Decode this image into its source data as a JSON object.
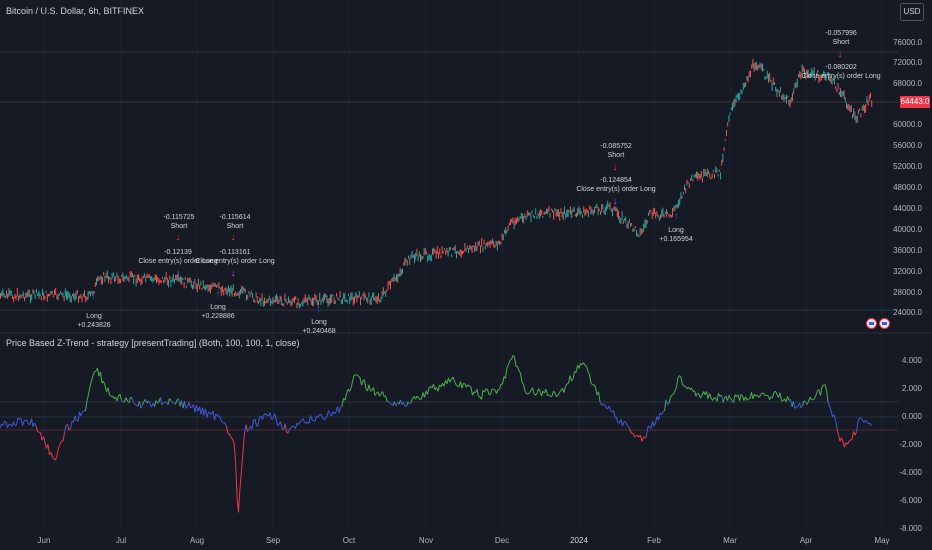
{
  "header": {
    "symbol_title": "Bitcoin / U.S. Dollar, 6h, BITFINEX",
    "currency_button": "USD"
  },
  "price_axis": {
    "labels": [
      "76000.0",
      "72000.0",
      "68000.0",
      "60000.0",
      "56000.0",
      "52000.0",
      "48000.0",
      "44000.0",
      "40000.0",
      "36000.0",
      "32000.0",
      "28000.0",
      "24000.0"
    ],
    "last_price": "64443.0",
    "last_price_color": "#f23645"
  },
  "indicator": {
    "title": "Price Based Z-Trend - strategy [presentTrading] (Both, 100, 100, 1, close)",
    "axis_labels": [
      "4.000",
      "2.000",
      "0.000",
      "-2.000",
      "-4.000",
      "-6.000",
      "-8.000"
    ],
    "colors": {
      "positive": "#4caf50",
      "neutral": "#3f5bd8",
      "negative": "#f23645"
    }
  },
  "time_axis": {
    "labels": [
      "Jun",
      "Jul",
      "Aug",
      "Sep",
      "Oct",
      "Nov",
      "Dec",
      "2024",
      "Feb",
      "Mar",
      "Apr",
      "May"
    ]
  },
  "trade_labels": [
    {
      "lines": [
        "-0.115725",
        "Short"
      ]
    },
    {
      "lines": [
        "-0.12139",
        "Close entry(s) order Long"
      ]
    },
    {
      "lines": [
        "-0.115614",
        "Short"
      ]
    },
    {
      "lines": [
        "-0.113161",
        "Close entry(s) order Long"
      ]
    },
    {
      "lines": [
        "Long",
        "+0.243826"
      ]
    },
    {
      "lines": [
        "Long",
        "+0.228886"
      ]
    },
    {
      "lines": [
        "Long",
        "+0.240468"
      ]
    },
    {
      "lines": [
        "-0.085752",
        "Short"
      ]
    },
    {
      "lines": [
        "-0.124854",
        "Close entry(s) order Long"
      ]
    },
    {
      "lines": [
        "Long",
        "+0.165954"
      ]
    },
    {
      "lines": [
        "-0.057996",
        "Short"
      ]
    },
    {
      "lines": [
        "-0.080202",
        "Close entry(s) order Long"
      ]
    }
  ],
  "colors": {
    "bull": "#26a69a",
    "bear": "#ef5350",
    "long_arrow": "#2962ff",
    "short_arrow": "#f23645",
    "close_arrow": "#e040fb"
  }
}
